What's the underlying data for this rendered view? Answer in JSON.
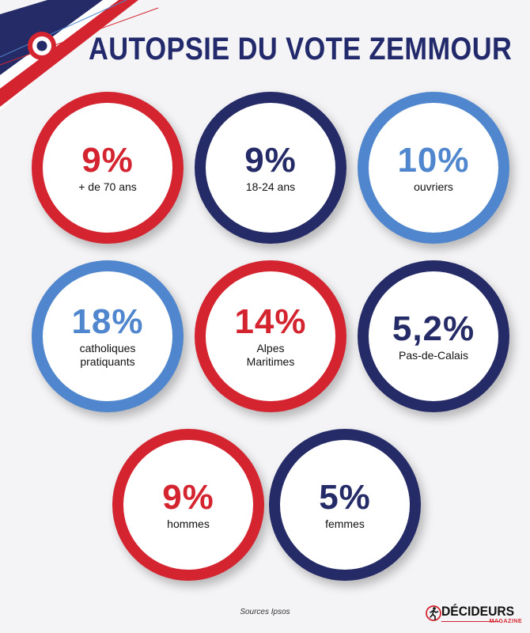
{
  "title": "AUTOPSIE DU VOTE ZEMMOUR",
  "stats": [
    {
      "value": "9%",
      "label": "+ de 70 ans",
      "color": "#d42430"
    },
    {
      "value": "9%",
      "label": "18-24 ans",
      "color": "#252b66"
    },
    {
      "value": "10%",
      "label": "ouvriers",
      "color": "#4f86cd"
    },
    {
      "value": "18%",
      "label": "catholiques\npratiquants",
      "color": "#4f86cd"
    },
    {
      "value": "14%",
      "label": "Alpes\nMaritimes",
      "color": "#d42430"
    },
    {
      "value": "5,2%",
      "label": "Pas-de-Calais",
      "color": "#252b66"
    },
    {
      "value": "9%",
      "label": "hommes",
      "color": "#d42430"
    },
    {
      "value": "5%",
      "label": "femmes",
      "color": "#252b66"
    }
  ],
  "sources": "Sources Ipsos",
  "logo": {
    "name": "DÉCIDEURS",
    "subtitle": "MAGAZINE",
    "icon": "runner-logo-icon"
  },
  "colors": {
    "red": "#d42430",
    "navy": "#252b66",
    "blue": "#4f86cd",
    "background": "#f4f4f6"
  }
}
